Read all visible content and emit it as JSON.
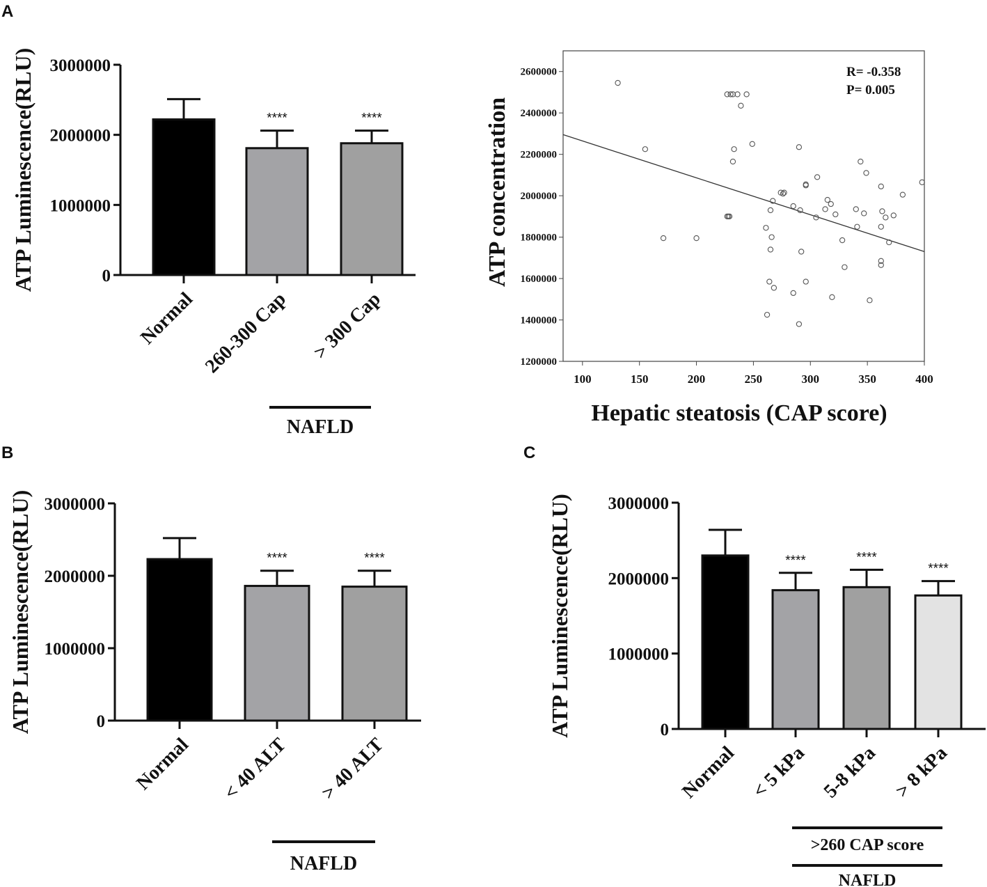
{
  "chart_data": [
    {
      "panel": "A",
      "type": "bar",
      "ylabel": "ATP Luminescence(RLU)",
      "ylim": [
        0,
        3000000
      ],
      "yticks": [
        "0",
        "1000000",
        "2000000",
        "3000000"
      ],
      "categories": [
        "Normal",
        "260-300 Cap",
        "> 300 Cap"
      ],
      "values": [
        2220000,
        1810000,
        1880000
      ],
      "errors": [
        290000,
        250000,
        180000
      ],
      "colors": [
        "#000000",
        "#a3a3a6",
        "#a0a0a0"
      ],
      "significance": [
        "",
        "****",
        "****"
      ],
      "group_labels": [
        "NAFLD"
      ]
    },
    {
      "panel": "A",
      "type": "scatter",
      "xlabel": "Hepatic steatosis (CAP score)",
      "ylabel": "ATP concentration",
      "xlim": [
        83,
        400
      ],
      "ylim": [
        1200000,
        2700000
      ],
      "xticks": [
        "100",
        "150",
        "200",
        "250",
        "300",
        "350",
        "400"
      ],
      "yticks": [
        "1200000",
        "1400000",
        "1600000",
        "1800000",
        "2000000",
        "2200000",
        "2400000",
        "2600000"
      ],
      "annotation": [
        "R= -0.358",
        "P= 0.005"
      ],
      "fit_line": {
        "x": [
          83,
          400
        ],
        "y": [
          2295000,
          1730000
        ]
      },
      "points": [
        [
          131,
          2545000
        ],
        [
          155,
          2225000
        ],
        [
          171,
          1795000
        ],
        [
          200,
          1795000
        ],
        [
          227,
          2490000
        ],
        [
          230,
          2490000
        ],
        [
          232,
          2490000
        ],
        [
          236,
          2490000
        ],
        [
          239,
          2435000
        ],
        [
          244,
          2490000
        ],
        [
          233,
          2225000
        ],
        [
          232,
          2165000
        ],
        [
          249,
          2250000
        ],
        [
          227,
          1900000
        ],
        [
          228,
          1900000
        ],
        [
          229,
          1900000
        ],
        [
          290,
          2235000
        ],
        [
          261,
          1845000
        ],
        [
          265,
          1930000
        ],
        [
          266,
          1800000
        ],
        [
          265,
          1740000
        ],
        [
          267,
          1975000
        ],
        [
          274,
          2015000
        ],
        [
          276,
          2010000
        ],
        [
          277,
          2015000
        ],
        [
          285,
          1950000
        ],
        [
          291,
          1930000
        ],
        [
          292,
          1730000
        ],
        [
          296,
          2050000
        ],
        [
          296,
          2055000
        ],
        [
          296,
          1585000
        ],
        [
          305,
          1895000
        ],
        [
          306,
          2090000
        ],
        [
          313,
          1935000
        ],
        [
          315,
          1980000
        ],
        [
          318,
          1960000
        ],
        [
          322,
          1910000
        ],
        [
          328,
          1785000
        ],
        [
          330,
          1655000
        ],
        [
          340,
          1935000
        ],
        [
          341,
          1850000
        ],
        [
          344,
          2165000
        ],
        [
          347,
          1915000
        ],
        [
          349,
          2110000
        ],
        [
          352,
          1495000
        ],
        [
          362,
          1685000
        ],
        [
          362,
          1665000
        ],
        [
          362,
          1850000
        ],
        [
          362,
          2045000
        ],
        [
          363,
          1925000
        ],
        [
          366,
          1895000
        ],
        [
          369,
          1775000
        ],
        [
          373,
          1905000
        ],
        [
          381,
          2005000
        ],
        [
          398,
          2065000
        ],
        [
          264,
          1585000
        ],
        [
          262,
          1425000
        ],
        [
          268,
          1555000
        ],
        [
          285,
          1530000
        ],
        [
          290,
          1380000
        ],
        [
          319,
          1510000
        ]
      ]
    },
    {
      "panel": "B",
      "type": "bar",
      "ylabel": "ATP Luminescence(RLU)",
      "ylim": [
        0,
        3000000
      ],
      "yticks": [
        "0",
        "1000000",
        "2000000",
        "3000000"
      ],
      "categories": [
        "Normal",
        "< 40 ALT",
        "> 40 ALT"
      ],
      "values": [
        2230000,
        1860000,
        1850000
      ],
      "errors": [
        290000,
        210000,
        220000
      ],
      "colors": [
        "#000000",
        "#a3a3a6",
        "#a0a0a0"
      ],
      "significance": [
        "",
        "****",
        "****"
      ],
      "group_labels": [
        "NAFLD"
      ]
    },
    {
      "panel": "C",
      "type": "bar",
      "ylabel": "ATP Luminescence(RLU)",
      "ylim": [
        0,
        3000000
      ],
      "yticks": [
        "0",
        "1000000",
        "2000000",
        "3000000"
      ],
      "categories": [
        "Normal",
        "< 5 kPa",
        "5-8 kPa",
        "> 8 kPa"
      ],
      "values": [
        2300000,
        1840000,
        1880000,
        1770000
      ],
      "errors": [
        340000,
        230000,
        230000,
        190000
      ],
      "colors": [
        "#000000",
        "#a3a3a6",
        "#a0a0a0",
        "#e3e3e3"
      ],
      "significance": [
        "",
        "****",
        "****",
        "****"
      ],
      "group_labels": [
        ">260 CAP score",
        "NAFLD"
      ]
    }
  ],
  "panel_labels": [
    "A",
    "B",
    "C"
  ]
}
